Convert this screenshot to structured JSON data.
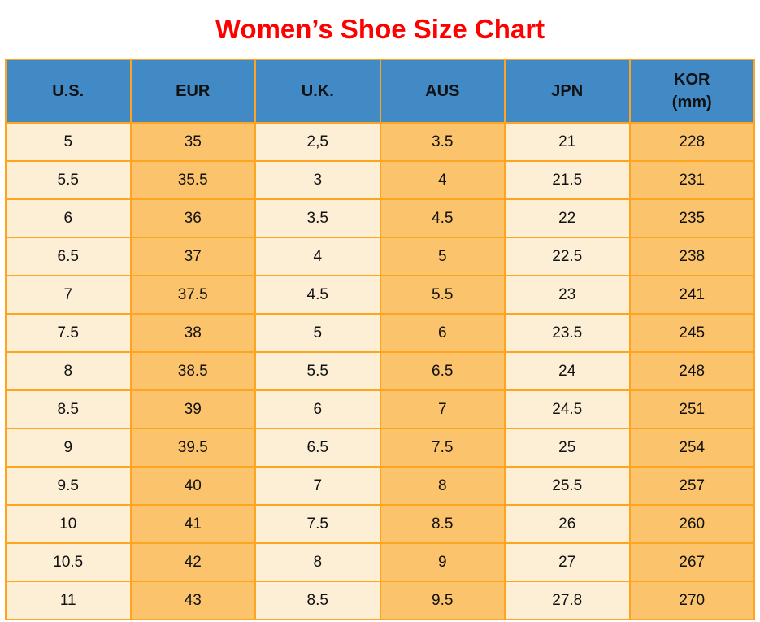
{
  "page": {
    "title": "Women’s Shoe Size Chart"
  },
  "colors": {
    "title_red": "#ff0000",
    "header_blue": "#428ac6",
    "col_cream": "#fdeed6",
    "col_orange": "#fbc36c",
    "grid_orange": "#ffa41e",
    "text_black": "#111111",
    "background": "#ffffff"
  },
  "table": {
    "headers": [
      {
        "label": "U.S.",
        "sub": ""
      },
      {
        "label": "EUR",
        "sub": ""
      },
      {
        "label": "U.K.",
        "sub": ""
      },
      {
        "label": "AUS",
        "sub": ""
      },
      {
        "label": "JPN",
        "sub": ""
      },
      {
        "label": "KOR",
        "sub": "(mm)"
      }
    ],
    "rows": [
      [
        "5",
        "35",
        "2,5",
        "3.5",
        "21",
        "228"
      ],
      [
        "5.5",
        "35.5",
        "3",
        "4",
        "21.5",
        "231"
      ],
      [
        "6",
        "36",
        "3.5",
        "4.5",
        "22",
        "235"
      ],
      [
        "6.5",
        "37",
        "4",
        "5",
        "22.5",
        "238"
      ],
      [
        "7",
        "37.5",
        "4.5",
        "5.5",
        "23",
        "241"
      ],
      [
        "7.5",
        "38",
        "5",
        "6",
        "23.5",
        "245"
      ],
      [
        "8",
        "38.5",
        "5.5",
        "6.5",
        "24",
        "248"
      ],
      [
        "8.5",
        "39",
        "6",
        "7",
        "24.5",
        "251"
      ],
      [
        "9",
        "39.5",
        "6.5",
        "7.5",
        "25",
        "254"
      ],
      [
        "9.5",
        "40",
        "7",
        "8",
        "25.5",
        "257"
      ],
      [
        "10",
        "41",
        "7.5",
        "8.5",
        "26",
        "260"
      ],
      [
        "10.5",
        "42",
        "8",
        "9",
        "27",
        "267"
      ],
      [
        "11",
        "43",
        "8.5",
        "9.5",
        "27.8",
        "270"
      ]
    ]
  },
  "chart_data": {
    "type": "table",
    "title": "Women’s Shoe Size Chart",
    "columns": [
      "U.S.",
      "EUR",
      "U.K.",
      "AUS",
      "JPN",
      "KOR (mm)"
    ],
    "rows": [
      [
        "5",
        "35",
        "2,5",
        "3.5",
        "21",
        "228"
      ],
      [
        "5.5",
        "35.5",
        "3",
        "4",
        "21.5",
        "231"
      ],
      [
        "6",
        "36",
        "3.5",
        "4.5",
        "22",
        "235"
      ],
      [
        "6.5",
        "37",
        "4",
        "5",
        "22.5",
        "238"
      ],
      [
        "7",
        "37.5",
        "4.5",
        "5.5",
        "23",
        "241"
      ],
      [
        "7.5",
        "38",
        "5",
        "6",
        "23.5",
        "245"
      ],
      [
        "8",
        "38.5",
        "5.5",
        "6.5",
        "24",
        "248"
      ],
      [
        "8.5",
        "39",
        "6",
        "7",
        "24.5",
        "251"
      ],
      [
        "9",
        "39.5",
        "6.5",
        "7.5",
        "25",
        "254"
      ],
      [
        "9.5",
        "40",
        "7",
        "8",
        "25.5",
        "257"
      ],
      [
        "10",
        "41",
        "7.5",
        "8.5",
        "26",
        "260"
      ],
      [
        "10.5",
        "42",
        "8",
        "9",
        "27",
        "267"
      ],
      [
        "11",
        "43",
        "8.5",
        "9.5",
        "27.8",
        "270"
      ]
    ],
    "layout": {
      "header_background": "#428ac6",
      "column_fill_alternation": [
        "#fdeed6",
        "#fbc36c"
      ],
      "gridlines": "on",
      "grid_color": "#ffa41e"
    }
  }
}
